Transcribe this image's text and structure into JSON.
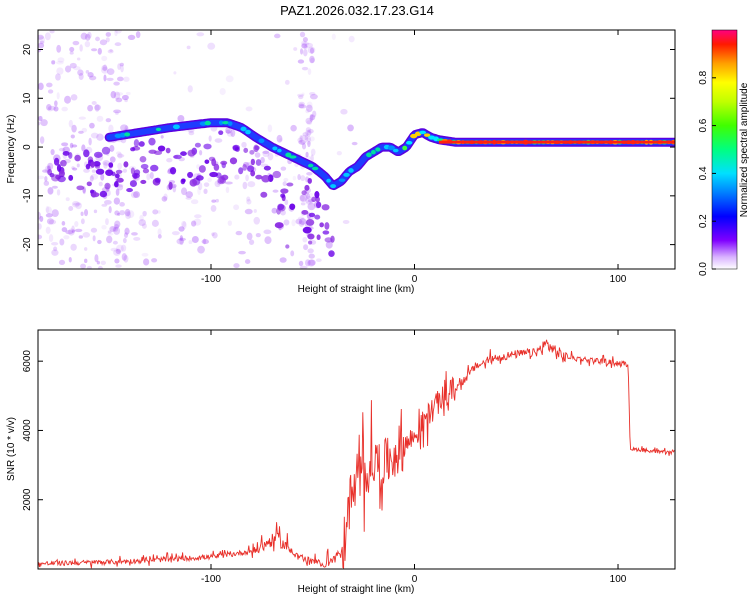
{
  "chart_data": [
    {
      "type": "spectrogram",
      "title": "PAZ1.2026.032.17.23.G14",
      "xlabel": "Height of straight line (km)",
      "ylabel": "Frequency (Hz)",
      "xlim": [
        -185,
        128
      ],
      "ylim": [
        -25,
        24
      ],
      "x_ticks": [
        -100,
        0,
        100
      ],
      "y_ticks": [
        -20,
        -10,
        0,
        10,
        20
      ],
      "ridge_line": {
        "x": [
          -150,
          -135,
          -120,
          -110,
          -100,
          -92,
          -85,
          -78,
          -70,
          -60,
          -50,
          -44,
          -40,
          -36,
          -32,
          -28,
          -24,
          -20,
          -16,
          -12,
          -8,
          -4,
          0,
          4,
          8,
          12,
          20,
          40,
          60,
          80,
          100,
          128
        ],
        "y": [
          2,
          3,
          4,
          4.5,
          5,
          5,
          4,
          2,
          0,
          -2,
          -4,
          -6,
          -8,
          -7,
          -5,
          -4,
          -2,
          -1,
          0,
          0,
          -1,
          0,
          2.5,
          3,
          2,
          1.5,
          1,
          1,
          1,
          1,
          1,
          1
        ]
      },
      "colorbar": {
        "label": "Normalized spectral amplitude",
        "ticks": [
          "0.0",
          "0.2",
          "0.4",
          "0.6",
          "0.8"
        ],
        "range": [
          0,
          1
        ]
      }
    },
    {
      "type": "line",
      "title": "",
      "xlabel": "Height of straight line (km)",
      "ylabel": "SNR (10 * v/v)",
      "xlim": [
        -185,
        128
      ],
      "ylim": [
        0,
        6900
      ],
      "x_ticks": [
        -100,
        0,
        100
      ],
      "y_ticks": [
        2000,
        4000,
        6000
      ],
      "series": [
        {
          "name": "SNR",
          "color": "#e8302a",
          "x": [
            -185,
            -150,
            -120,
            -100,
            -90,
            -80,
            -75,
            -68,
            -62,
            -55,
            -45,
            -40,
            -35,
            -33,
            -30,
            -28,
            -25,
            -20,
            -15,
            -10,
            -5,
            0,
            5,
            10,
            15,
            20,
            25,
            30,
            40,
            50,
            60,
            65,
            68,
            72,
            80,
            90,
            100,
            105,
            106,
            107,
            110,
            115,
            120,
            125,
            128
          ],
          "y": [
            150,
            200,
            280,
            350,
            420,
            520,
            650,
            900,
            600,
            300,
            150,
            250,
            500,
            1700,
            2200,
            2400,
            2700,
            3100,
            3000,
            3300,
            3600,
            3800,
            4300,
            4700,
            5000,
            5200,
            5500,
            5850,
            6100,
            6200,
            6250,
            6500,
            6350,
            6150,
            6080,
            6020,
            5950,
            5900,
            3500,
            3450,
            3450,
            3420,
            3380,
            3350,
            3400
          ]
        }
      ]
    }
  ]
}
